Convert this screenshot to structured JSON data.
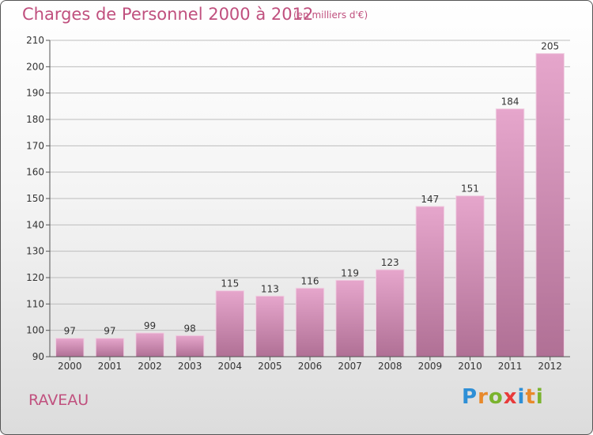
{
  "header": {
    "title": "Charges de Personnel 2000 à 2012",
    "subtitle": "(en milliers d'€)"
  },
  "footer": {
    "place": "RAVEAU",
    "brand": "Proxiti"
  },
  "colors": {
    "accent": "#c0507e",
    "bar_top": "#e6a6cc",
    "bar_bottom": "#b07095",
    "logo_letters": [
      "#2e8fd6",
      "#e8892b",
      "#7ab32e",
      "#e83a3a",
      "#2e8fd6",
      "#e8892b",
      "#7ab32e"
    ]
  },
  "chart_data": {
    "type": "bar",
    "categories": [
      "2000",
      "2001",
      "2002",
      "2003",
      "2004",
      "2005",
      "2006",
      "2007",
      "2008",
      "2009",
      "2010",
      "2011",
      "2012"
    ],
    "values": [
      97,
      97,
      99,
      98,
      115,
      113,
      116,
      119,
      123,
      147,
      151,
      184,
      205
    ],
    "ylim": [
      90,
      210
    ],
    "yticks": [
      90,
      100,
      110,
      120,
      130,
      140,
      150,
      160,
      170,
      180,
      190,
      200,
      210
    ],
    "grid": true
  }
}
